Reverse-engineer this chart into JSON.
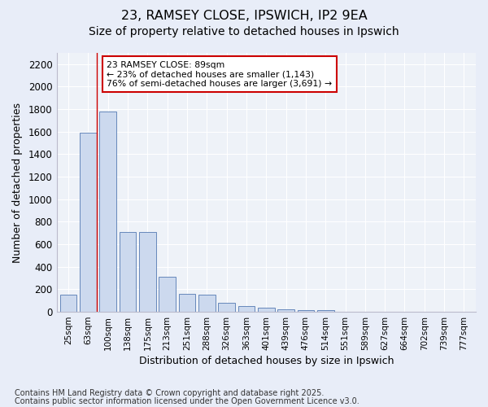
{
  "title1": "23, RAMSEY CLOSE, IPSWICH, IP2 9EA",
  "title2": "Size of property relative to detached houses in Ipswich",
  "xlabel": "Distribution of detached houses by size in Ipswich",
  "ylabel": "Number of detached properties",
  "footnote1": "Contains HM Land Registry data © Crown copyright and database right 2025.",
  "footnote2": "Contains public sector information licensed under the Open Government Licence v3.0.",
  "categories": [
    "25sqm",
    "63sqm",
    "100sqm",
    "138sqm",
    "175sqm",
    "213sqm",
    "251sqm",
    "288sqm",
    "326sqm",
    "363sqm",
    "401sqm",
    "439sqm",
    "476sqm",
    "514sqm",
    "551sqm",
    "589sqm",
    "627sqm",
    "664sqm",
    "702sqm",
    "739sqm",
    "777sqm"
  ],
  "values": [
    155,
    1590,
    1780,
    710,
    710,
    315,
    160,
    155,
    82,
    52,
    38,
    22,
    18,
    13,
    0,
    0,
    0,
    0,
    0,
    0,
    0
  ],
  "bar_color": "#ccd9ee",
  "bar_edge_color": "#6688bb",
  "vline_color": "#cc0000",
  "vline_x": 1.425,
  "annotation_text": "23 RAMSEY CLOSE: 89sqm\n← 23% of detached houses are smaller (1,143)\n76% of semi-detached houses are larger (3,691) →",
  "annotation_box_facecolor": "#ffffff",
  "annotation_box_edge": "#cc0000",
  "ylim": [
    0,
    2300
  ],
  "yticks": [
    0,
    200,
    400,
    600,
    800,
    1000,
    1200,
    1400,
    1600,
    1800,
    2000,
    2200
  ],
  "bg_color": "#e8edf8",
  "plot_bg_color": "#eef2f8",
  "grid_color": "#ffffff",
  "title1_fontsize": 11.5,
  "title2_fontsize": 10,
  "footnote_fontsize": 7
}
